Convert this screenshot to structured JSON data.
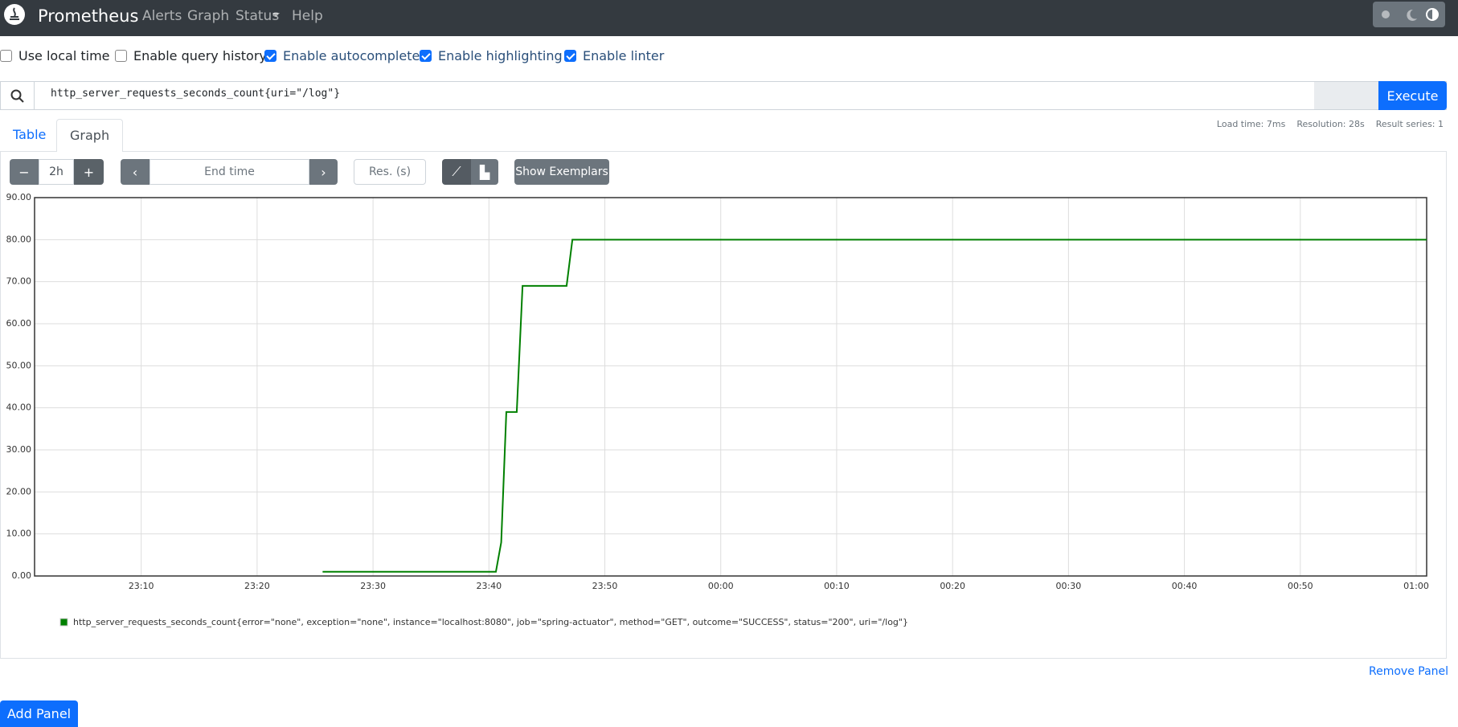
{
  "navbar": {
    "brand": "Prometheus",
    "links": [
      "Alerts",
      "Graph",
      "Status",
      "Help"
    ]
  },
  "options": [
    {
      "label": "Use local time",
      "checked": false
    },
    {
      "label": "Enable query history",
      "checked": false
    },
    {
      "label": "Enable autocomplete",
      "checked": true
    },
    {
      "label": "Enable highlighting",
      "checked": true
    },
    {
      "label": "Enable linter",
      "checked": true
    }
  ],
  "query": "http_server_requests_seconds_count{uri=\"/log\"}",
  "execute": "Execute",
  "tabs": [
    "Table",
    "Graph"
  ],
  "stats": [
    "Load time: 7ms",
    "Resolution: 28s",
    "Result series: 1"
  ],
  "controls": {
    "range": "2h",
    "end_time": "End time",
    "resolution": "Res. (s)",
    "exemplars": "Show Exemplars"
  },
  "chart_data": {
    "type": "line",
    "x": [
      25.65,
      40.6,
      41.06,
      41.5,
      42.4,
      42.9,
      46.7,
      47.2,
      120.9
    ],
    "series": [
      {
        "name": "http_server_requests_seconds_count{error=\"none\", exception=\"none\", instance=\"localhost:8080\", job=\"spring-actuator\", method=\"GET\", outcome=\"SUCCESS\", status=\"200\", uri=\"/log\"}",
        "color": "#008000",
        "values": [
          1,
          1,
          8,
          39,
          39,
          69,
          69,
          80,
          80
        ]
      }
    ],
    "xlim": [
      0.8,
      120.9
    ],
    "xticks": [
      {
        "value": 10,
        "label": "23:10"
      },
      {
        "value": 20,
        "label": "23:20"
      },
      {
        "value": 30,
        "label": "23:30"
      },
      {
        "value": 40,
        "label": "23:40"
      },
      {
        "value": 50,
        "label": "23:50"
      },
      {
        "value": 60,
        "label": "00:00"
      },
      {
        "value": 70,
        "label": "00:10"
      },
      {
        "value": 80,
        "label": "00:20"
      },
      {
        "value": 90,
        "label": "00:30"
      },
      {
        "value": 100,
        "label": "00:40"
      },
      {
        "value": 110,
        "label": "00:50"
      },
      {
        "value": 120,
        "label": "01:00"
      }
    ],
    "ylim": [
      0,
      90
    ],
    "yticks": [
      {
        "value": 0,
        "label": "0.00"
      },
      {
        "value": 10,
        "label": "10.00"
      },
      {
        "value": 20,
        "label": "20.00"
      },
      {
        "value": 30,
        "label": "30.00"
      },
      {
        "value": 40,
        "label": "40.00"
      },
      {
        "value": 50,
        "label": "50.00"
      },
      {
        "value": 60,
        "label": "60.00"
      },
      {
        "value": 70,
        "label": "70.00"
      },
      {
        "value": 80,
        "label": "80.00"
      },
      {
        "value": 90,
        "label": "90.00"
      }
    ],
    "grid": true
  },
  "remove_panel": "Remove Panel",
  "add_panel": "Add Panel"
}
